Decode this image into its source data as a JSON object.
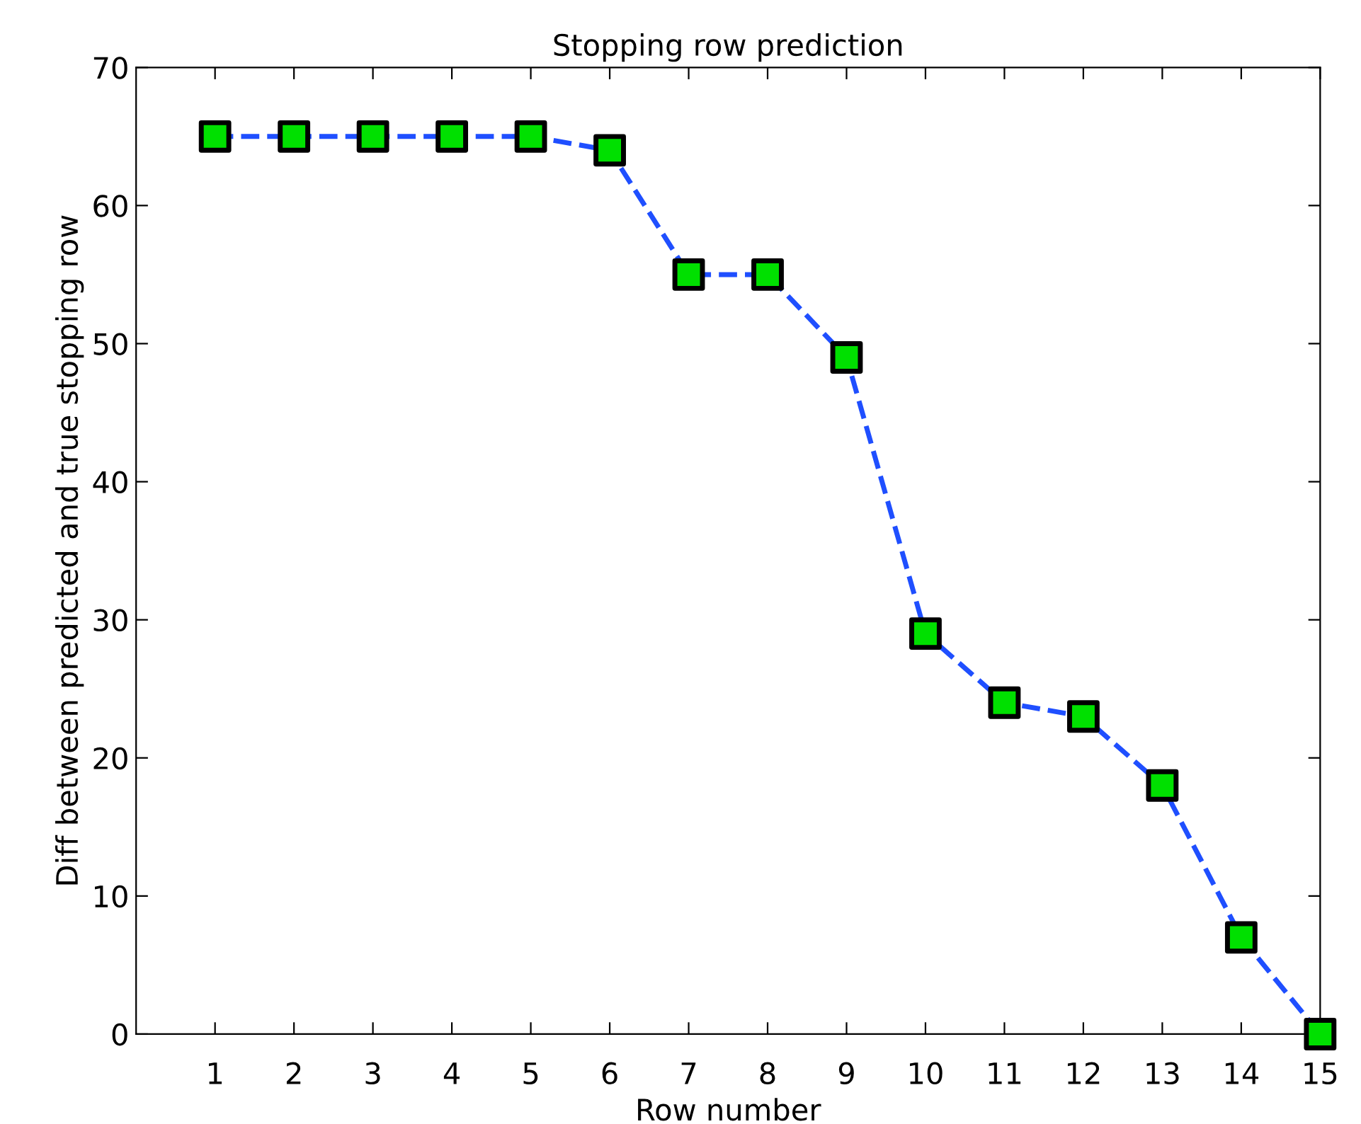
{
  "chart_data": {
    "type": "line",
    "title": "Stopping row prediction",
    "xlabel": "Row number",
    "ylabel": "Diff between predicted and true stopping row",
    "x": [
      1,
      2,
      3,
      4,
      5,
      6,
      7,
      8,
      9,
      10,
      11,
      12,
      13,
      14,
      15
    ],
    "series": [
      {
        "color": "#1f4fff",
        "colors": [
          "#00e000",
          "#00e000",
          "#00e000",
          "#00e000",
          "#00e000",
          "#00e000",
          "#00e000",
          "#00e000",
          "#00e000",
          "#00e000",
          "#00e000",
          "#00e000",
          "#00e000",
          "#00e000",
          "#00e000"
        ],
        "values": [
          65,
          65,
          65,
          65,
          65,
          64,
          55,
          55,
          49,
          29,
          24,
          23,
          18,
          7,
          0
        ]
      }
    ],
    "xlim": [
      0,
      15
    ],
    "xticks": [
      1,
      2,
      3,
      4,
      5,
      6,
      7,
      8,
      9,
      10,
      11,
      12,
      13,
      14,
      15
    ],
    "ylim": [
      0,
      70
    ],
    "yticks": [
      0,
      10,
      20,
      30,
      40,
      50,
      60,
      70
    ],
    "grid": false,
    "legend": false,
    "marker": "square",
    "line_style": "dashed"
  }
}
